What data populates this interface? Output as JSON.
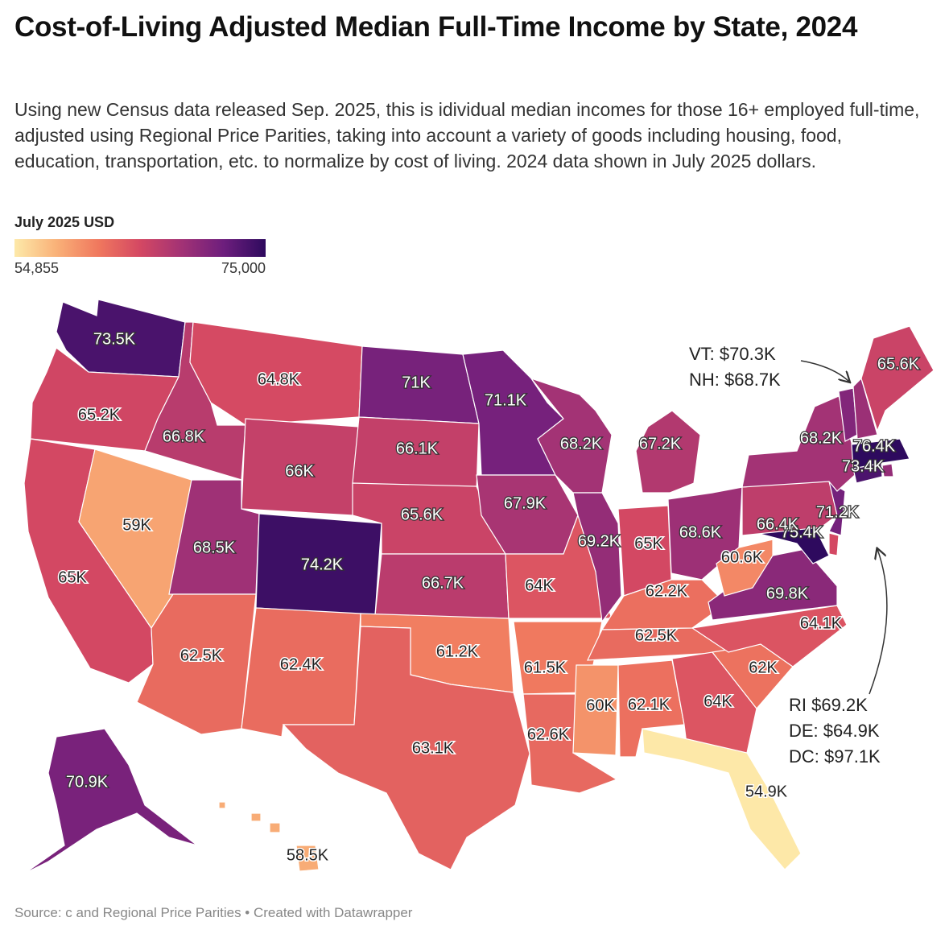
{
  "title": "Cost-of-Living Adjusted Median Full-Time Income by State, 2024",
  "subtitle": "Using new Census data released Sep. 2025, this is idividual median incomes for those 16+ employed full-time, adjusted using Regional Price Parities, taking into account a variety of goods including housing, food, education, transportation, etc. to normalize by cost of living. 2024 data shown in July 2025 dollars.",
  "legend": {
    "title": "July 2025 USD",
    "min_label": "54,855",
    "max_label": "75,000",
    "colors": [
      "#fde9a9",
      "#f9b178",
      "#f0785e",
      "#d44863",
      "#a23275",
      "#6d1e7d",
      "#2e0a5e"
    ]
  },
  "annotations": {
    "vt": "VT: $70.3K",
    "nh": "NH: $68.7K",
    "ri": "RI $69.2K",
    "de": "DE: $64.9K",
    "dc": "DC: $97.1K"
  },
  "footer": "Source: c and Regional Price Parities • Created with Datawrapper",
  "states": {
    "WA": {
      "label": "73.5K",
      "value": 73500
    },
    "OR": {
      "label": "65.2K",
      "value": 65200
    },
    "CA": {
      "label": "65K",
      "value": 65000
    },
    "NV": {
      "label": "59K",
      "value": 59000
    },
    "ID": {
      "label": "66.8K",
      "value": 66800
    },
    "MT": {
      "label": "64.8K",
      "value": 64800
    },
    "WY": {
      "label": "66K",
      "value": 66000
    },
    "UT": {
      "label": "68.5K",
      "value": 68500
    },
    "AZ": {
      "label": "62.5K",
      "value": 62500
    },
    "CO": {
      "label": "74.2K",
      "value": 74200
    },
    "NM": {
      "label": "62.4K",
      "value": 62400
    },
    "ND": {
      "label": "71K",
      "value": 71000
    },
    "SD": {
      "label": "66.1K",
      "value": 66100
    },
    "NE": {
      "label": "65.6K",
      "value": 65600
    },
    "KS": {
      "label": "66.7K",
      "value": 66700
    },
    "OK": {
      "label": "61.2K",
      "value": 61200
    },
    "TX": {
      "label": "63.1K",
      "value": 63100
    },
    "MN": {
      "label": "71.1K",
      "value": 71100
    },
    "IA": {
      "label": "67.9K",
      "value": 67900
    },
    "MO": {
      "label": "64K",
      "value": 64000
    },
    "AR": {
      "label": "61.5K",
      "value": 61500
    },
    "LA": {
      "label": "62.6K",
      "value": 62600
    },
    "WI": {
      "label": "68.2K",
      "value": 68200
    },
    "IL": {
      "label": "69.2K",
      "value": 69200
    },
    "MI": {
      "label": "67.2K",
      "value": 67200
    },
    "IN": {
      "label": "65K",
      "value": 65000
    },
    "OH": {
      "label": "68.6K",
      "value": 68600
    },
    "KY": {
      "label": "62.2K",
      "value": 62200
    },
    "TN": {
      "label": "62.5K",
      "value": 62500
    },
    "MS": {
      "label": "60K",
      "value": 60000
    },
    "AL": {
      "label": "62.1K",
      "value": 62100
    },
    "GA": {
      "label": "64K",
      "value": 64000
    },
    "FL": {
      "label": "54.9K",
      "value": 54900
    },
    "SC": {
      "label": "62K",
      "value": 62000
    },
    "NC": {
      "label": "64.1K",
      "value": 64100
    },
    "VA": {
      "label": "69.8K",
      "value": 69800
    },
    "WV": {
      "label": "60.6K",
      "value": 60600
    },
    "MD": {
      "label": "75.4K",
      "value": 75400
    },
    "PA": {
      "label": "66.4K",
      "value": 66400
    },
    "NJ": {
      "label": "71.2K",
      "value": 71200
    },
    "NY": {
      "label": "68.2K",
      "value": 68200
    },
    "CT": {
      "label": "73.4K",
      "value": 73400
    },
    "MA": {
      "label": "76.4K",
      "value": 76400
    },
    "ME": {
      "label": "65.6K",
      "value": 65600
    },
    "AK": {
      "label": "70.9K",
      "value": 70900
    },
    "HI": {
      "label": "58.5K",
      "value": 58500
    },
    "VT": {
      "value": 70300
    },
    "NH": {
      "value": 68700
    },
    "RI": {
      "value": 69200
    },
    "DE": {
      "value": 64900
    }
  }
}
